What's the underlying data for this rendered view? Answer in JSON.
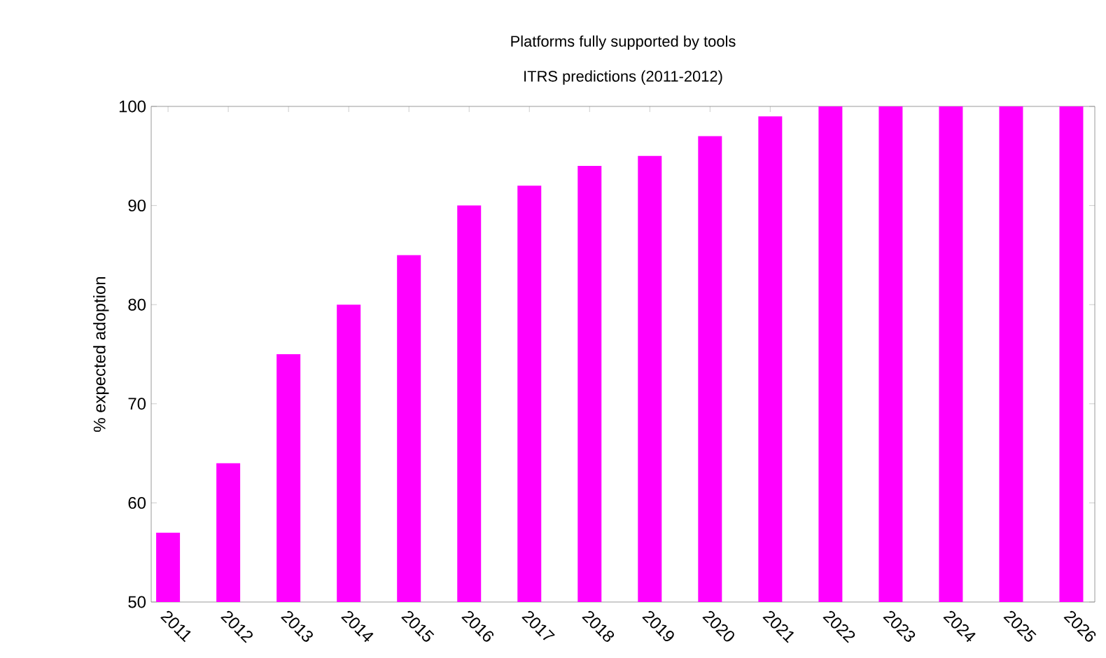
{
  "chart_data": {
    "type": "bar",
    "title": "Platforms fully supported by tools",
    "subtitle": "ITRS predictions (2011-2012)",
    "ylabel": "% expected adoption",
    "categories": [
      "2011",
      "2012",
      "2013",
      "2014",
      "2015",
      "2016",
      "2017",
      "2018",
      "2019",
      "2020",
      "2021",
      "2022",
      "2023",
      "2024",
      "2025",
      "2026"
    ],
    "values": [
      57,
      64,
      75,
      80,
      85,
      90,
      92,
      94,
      95,
      97,
      99,
      100,
      100,
      100,
      100,
      100
    ],
    "color": "#ff00ff",
    "ylim": [
      50,
      100
    ],
    "yticks": [
      50,
      60,
      70,
      80,
      90,
      100
    ],
    "grid": false
  }
}
